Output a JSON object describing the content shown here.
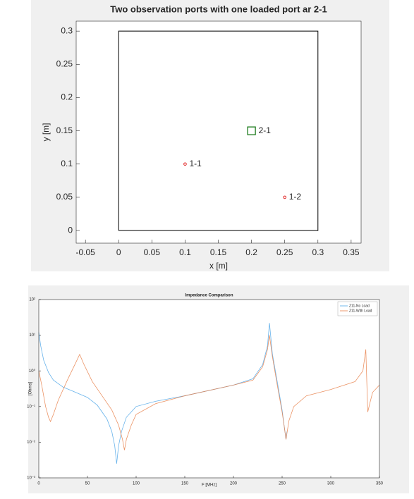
{
  "chart_data": [
    {
      "type": "scatter",
      "title": "Two observation ports with one loaded port ar 2-1",
      "xlabel": "x [m]",
      "ylabel": "y [m]",
      "xlim": [
        -0.064,
        0.365
      ],
      "ylim": [
        -0.019,
        0.315
      ],
      "xticks": [
        -0.05,
        0,
        0.05,
        0.1,
        0.15,
        0.2,
        0.25,
        0.3,
        0.35
      ],
      "yticks": [
        0,
        0.05,
        0.1,
        0.15,
        0.2,
        0.25,
        0.3
      ],
      "boundary": {
        "color": "#000000",
        "x": [
          0,
          0.3,
          0.3,
          0,
          0
        ],
        "y": [
          0,
          0,
          0.3,
          0.3,
          0
        ]
      },
      "series": [
        {
          "name": "1-1",
          "color": "#e02020",
          "marker": "circle",
          "x": [
            0.1
          ],
          "values": [
            0.1
          ]
        },
        {
          "name": "1-2",
          "color": "#e02020",
          "marker": "circle",
          "x": [
            0.25
          ],
          "values": [
            0.05
          ]
        },
        {
          "name": "2-1",
          "color": "#1a7a1a",
          "marker": "square",
          "x": [
            0.2
          ],
          "values": [
            0.15
          ]
        }
      ]
    },
    {
      "type": "line",
      "title": "Impedance Comparison",
      "xlabel": "F [MHz]",
      "ylabel": "[Ohms]",
      "log_y": true,
      "legend": "northeast",
      "xlim": [
        0,
        350
      ],
      "ylim": [
        0.001,
        100
      ],
      "xticks": [
        0,
        50,
        100,
        150,
        200,
        250,
        300,
        350
      ],
      "yticks": [
        {
          "value": 0.001,
          "label": "10⁻³"
        },
        {
          "value": 0.01,
          "label": "10⁻²"
        },
        {
          "value": 0.1,
          "label": "10⁻¹"
        },
        {
          "value": 1,
          "label": "10⁰"
        },
        {
          "value": 10,
          "label": "10¹"
        },
        {
          "value": 100,
          "label": "10²"
        }
      ],
      "series": [
        {
          "name": "Z11-No Load",
          "color": "#4da6e8",
          "x": [
            0,
            2,
            5,
            10,
            15,
            25,
            35,
            50,
            60,
            70,
            75,
            78,
            80,
            82,
            85,
            90,
            100,
            120,
            150,
            200,
            220,
            230,
            235,
            237,
            240,
            245,
            250,
            252,
            254,
            255
          ],
          "values": [
            12,
            5,
            2,
            0.9,
            0.55,
            0.35,
            0.27,
            0.18,
            0.11,
            0.045,
            0.02,
            0.008,
            0.0025,
            0.008,
            0.02,
            0.05,
            0.1,
            0.14,
            0.2,
            0.4,
            0.6,
            1.5,
            5,
            22,
            3,
            0.5,
            0.08,
            0.03,
            0.012,
            0.02
          ]
        },
        {
          "name": "Z11-With Load",
          "color": "#e8804a",
          "x": [
            0,
            3,
            7,
            10,
            12,
            15,
            20,
            30,
            38,
            42,
            46,
            55,
            65,
            75,
            82,
            86,
            88,
            90,
            95,
            100,
            120,
            150,
            200,
            220,
            230,
            235,
            237,
            240,
            245,
            250,
            252,
            254,
            257,
            262,
            275,
            300,
            325,
            333,
            336,
            337,
            338,
            340,
            343,
            350
          ],
          "values": [
            1,
            0.4,
            0.1,
            0.05,
            0.038,
            0.06,
            0.15,
            0.6,
            1.7,
            2.9,
            1.6,
            0.5,
            0.2,
            0.08,
            0.03,
            0.012,
            0.006,
            0.012,
            0.03,
            0.06,
            0.12,
            0.2,
            0.4,
            0.55,
            1.3,
            4,
            10,
            2.5,
            0.4,
            0.07,
            0.03,
            0.012,
            0.04,
            0.1,
            0.2,
            0.3,
            0.5,
            1,
            4,
            0.5,
            0.07,
            0.12,
            0.25,
            0.4
          ]
        }
      ]
    }
  ]
}
